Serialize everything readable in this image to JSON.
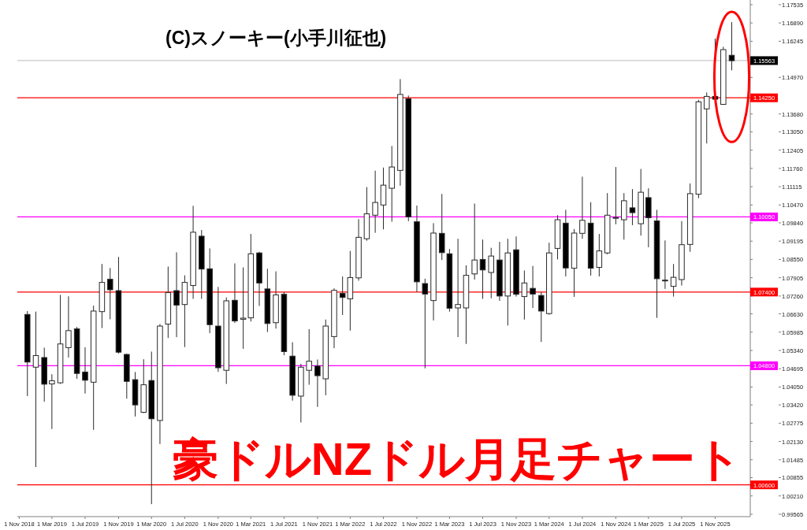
{
  "chart_data": {
    "type": "candlestick",
    "title": "豪ドルNZドル月足チャート",
    "annotations": [
      "(C)スノーキー(小手川征也)"
    ],
    "x": [
      "2018-12",
      "2019-01",
      "2019-02",
      "2019-03",
      "2019-04",
      "2019-05",
      "2019-06",
      "2019-07",
      "2019-08",
      "2019-09",
      "2019-10",
      "2019-11",
      "2019-12",
      "2020-01",
      "2020-02",
      "2020-03",
      "2020-04",
      "2020-05",
      "2020-06",
      "2020-07",
      "2020-08",
      "2020-09",
      "2020-10",
      "2020-11",
      "2020-12",
      "2021-01",
      "2021-02",
      "2021-03",
      "2021-04",
      "2021-05",
      "2021-06",
      "2021-07",
      "2021-08",
      "2021-09",
      "2021-10",
      "2021-11",
      "2021-12",
      "2022-01",
      "2022-02",
      "2022-03",
      "2022-04",
      "2022-05",
      "2022-06",
      "2022-07",
      "2022-08",
      "2022-09",
      "2022-10",
      "2022-11",
      "2022-12",
      "2023-01",
      "2023-02",
      "2023-03",
      "2023-04",
      "2023-05",
      "2023-06",
      "2023-07",
      "2023-08",
      "2023-09",
      "2023-10",
      "2023-11",
      "2023-12",
      "2024-01",
      "2024-02",
      "2024-03",
      "2024-04",
      "2024-05",
      "2024-06",
      "2024-07",
      "2024-08",
      "2024-09",
      "2024-10",
      "2024-11",
      "2024-12",
      "2025-01",
      "2025-02",
      "2025-03",
      "2025-04",
      "2025-05",
      "2025-06",
      "2025-07",
      "2025-08",
      "2025-09",
      "2025-10",
      "2025-11",
      "2025-12",
      "2026-01"
    ],
    "ohlc": [
      [
        1.0661,
        1.0673,
        1.0373,
        1.0493
      ],
      [
        1.0475,
        1.0671,
        1.0123,
        1.0516
      ],
      [
        1.0509,
        1.0544,
        1.0353,
        1.0415
      ],
      [
        1.0416,
        1.045,
        1.0257,
        1.0427
      ],
      [
        1.042,
        1.073,
        1.0416,
        1.0557
      ],
      [
        1.0544,
        1.0725,
        1.0509,
        1.0604
      ],
      [
        1.061,
        1.0617,
        1.0434,
        1.0453
      ],
      [
        1.0458,
        1.0545,
        1.0382,
        1.0429
      ],
      [
        1.0422,
        1.0692,
        1.0254,
        1.0673
      ],
      [
        1.0671,
        1.0839,
        1.0613,
        1.0774
      ],
      [
        1.0785,
        1.0825,
        1.0644,
        1.0748
      ],
      [
        1.0745,
        1.0864,
        1.0523,
        1.0528
      ],
      [
        1.052,
        1.0523,
        1.0364,
        1.0425
      ],
      [
        1.0431,
        1.0458,
        1.0301,
        1.0342
      ],
      [
        1.0316,
        1.0503,
        1.0313,
        1.0413
      ],
      [
        1.0428,
        1.053,
        0.9992,
        1.0293
      ],
      [
        1.0287,
        1.0627,
        1.0204,
        1.062
      ],
      [
        1.0627,
        1.083,
        1.0578,
        1.0738
      ],
      [
        1.0745,
        1.088,
        1.0581,
        1.0694
      ],
      [
        1.0696,
        1.0799,
        1.0546,
        1.0774
      ],
      [
        1.0763,
        1.1044,
        1.0716,
        1.0951
      ],
      [
        1.0937,
        1.0959,
        1.0716,
        1.0821
      ],
      [
        1.0822,
        1.0894,
        1.0595,
        1.0625
      ],
      [
        1.062,
        1.0758,
        1.0459,
        1.0473
      ],
      [
        1.0464,
        1.0721,
        1.0416,
        1.0709
      ],
      [
        1.0711,
        1.0841,
        1.0631,
        1.0638
      ],
      [
        1.0644,
        1.0827,
        1.054,
        1.0648
      ],
      [
        1.0649,
        1.0945,
        1.0636,
        1.0875
      ],
      [
        1.0878,
        1.0882,
        1.0691,
        1.0772
      ],
      [
        1.0751,
        1.0822,
        1.0599,
        1.0629
      ],
      [
        1.0632,
        1.0813,
        1.0611,
        1.073
      ],
      [
        1.0732,
        1.074,
        1.0517,
        1.053
      ],
      [
        1.0514,
        1.0563,
        1.0357,
        1.0376
      ],
      [
        1.0373,
        1.0487,
        1.028,
        1.0475
      ],
      [
        1.0464,
        1.0609,
        1.0413,
        1.0496
      ],
      [
        1.0479,
        1.0502,
        1.0335,
        1.0445
      ],
      [
        1.0434,
        1.0643,
        1.0376,
        1.062
      ],
      [
        1.0583,
        1.0753,
        1.0542,
        1.0746
      ],
      [
        1.0735,
        1.0795,
        1.0659,
        1.0721
      ],
      [
        1.0716,
        1.0885,
        1.0604,
        1.0791
      ],
      [
        1.079,
        1.0997,
        1.078,
        1.0933
      ],
      [
        1.0928,
        1.111,
        1.0921,
        1.1016
      ],
      [
        1.1011,
        1.1168,
        1.0949,
        1.1056
      ],
      [
        1.1047,
        1.1179,
        1.0961,
        1.1117
      ],
      [
        1.1106,
        1.1255,
        1.0988,
        1.1181
      ],
      [
        1.1169,
        1.1491,
        1.1115,
        1.1437
      ],
      [
        1.1422,
        1.1433,
        1.099,
        1.1005
      ],
      [
        1.0988,
        1.1045,
        1.074,
        1.0776
      ],
      [
        1.077,
        1.0787,
        1.0471,
        1.0733
      ],
      [
        1.071,
        1.0983,
        1.064,
        1.0948
      ],
      [
        1.0947,
        1.1086,
        1.0853,
        1.0879
      ],
      [
        1.0875,
        1.0892,
        1.0671,
        1.0683
      ],
      [
        1.0684,
        1.0928,
        1.0581,
        1.0696
      ],
      [
        1.0684,
        1.0834,
        1.0557,
        1.0799
      ],
      [
        1.0804,
        1.1052,
        1.0784,
        1.0853
      ],
      [
        1.0855,
        1.0925,
        1.0716,
        1.0818
      ],
      [
        1.0809,
        1.0896,
        1.0718,
        1.0867
      ],
      [
        1.0853,
        1.0917,
        1.0709,
        1.0726
      ],
      [
        1.0726,
        1.0928,
        1.0622,
        1.0878
      ],
      [
        1.0889,
        1.0936,
        1.0724,
        1.0732
      ],
      [
        1.0724,
        1.0816,
        1.0643,
        1.0772
      ],
      [
        1.0753,
        1.0832,
        1.0684,
        1.0733
      ],
      [
        1.0728,
        1.074,
        1.0564,
        1.0673
      ],
      [
        1.0664,
        1.0914,
        1.066,
        1.0878
      ],
      [
        1.0894,
        1.1011,
        1.0855,
        1.0995
      ],
      [
        1.0983,
        1.103,
        1.0795,
        1.0825
      ],
      [
        1.0824,
        1.0962,
        1.0723,
        1.0948
      ],
      [
        1.0947,
        1.1147,
        1.0928,
        1.0993
      ],
      [
        1.0983,
        1.1057,
        1.0798,
        1.0824
      ],
      [
        1.0827,
        1.0945,
        1.0795,
        1.0885
      ],
      [
        1.0878,
        1.1089,
        1.0873,
        1.1011
      ],
      [
        1.1,
        1.1181,
        1.0979,
        1.1003
      ],
      [
        1.0995,
        1.1089,
        1.0925,
        1.1062
      ],
      [
        1.1037,
        1.1103,
        1.0976,
        1.102
      ],
      [
        1.0981,
        1.1174,
        1.0939,
        1.1092
      ],
      [
        1.1073,
        1.1106,
        1.0898,
        1.1002
      ],
      [
        1.0991,
        1.103,
        1.0649,
        1.0787
      ],
      [
        1.0782,
        1.0922,
        1.0751,
        1.078
      ],
      [
        1.076,
        1.0839,
        1.0724,
        1.0792
      ],
      [
        1.0784,
        1.099,
        1.0763,
        1.0907
      ],
      [
        1.0908,
        1.1123,
        1.0882,
        1.1087
      ],
      [
        1.1085,
        1.1418,
        1.1071,
        1.1411
      ],
      [
        1.1386,
        1.1444,
        1.1264,
        1.143
      ],
      [
        1.143,
        1.1634,
        1.1415,
        1.142
      ],
      [
        1.1402,
        1.1605,
        1.14,
        1.1595
      ],
      [
        1.1575,
        1.1692,
        1.1522,
        1.1556
      ]
    ],
    "xlim": [
      "2018-10-25",
      "2026-03-10"
    ],
    "xticks": [
      {
        "value": "2018-11",
        "label": "1 Nov 2018"
      },
      {
        "value": "2019-03",
        "label": "1 Mar 2019"
      },
      {
        "value": "2019-07",
        "label": "1 Jul 2019"
      },
      {
        "value": "2019-11",
        "label": "1 Nov 2019"
      },
      {
        "value": "2020-03",
        "label": "1 Mar 2020"
      },
      {
        "value": "2020-07",
        "label": "1 Jul 2020"
      },
      {
        "value": "2020-11",
        "label": "1 Nov 2020"
      },
      {
        "value": "2021-03",
        "label": "1 Mar 2021"
      },
      {
        "value": "2021-07",
        "label": "1 Jul 2021"
      },
      {
        "value": "2021-11",
        "label": "1 Nov 2021"
      },
      {
        "value": "2022-03",
        "label": "1 Mar 2022"
      },
      {
        "value": "2022-07",
        "label": "1 Jul 2022"
      },
      {
        "value": "2022-11",
        "label": "1 Nov 2022"
      },
      {
        "value": "2023-03",
        "label": "1 Mar 2023"
      },
      {
        "value": "2023-07",
        "label": "1 Jul 2023"
      },
      {
        "value": "2023-11",
        "label": "1 Nov 2023"
      },
      {
        "value": "2024-03",
        "label": "1 Mar 2024"
      },
      {
        "value": "2024-07",
        "label": "1 Jul 2024"
      },
      {
        "value": "2024-11",
        "label": "1 Nov 2024"
      },
      {
        "value": "2025-03",
        "label": "1 Mar 2025"
      },
      {
        "value": "2025-07",
        "label": "1 Jul 2025"
      },
      {
        "value": "2025-11",
        "label": "1 Nov 2025"
      }
    ],
    "ylim": [
      0.9948,
      1.177
    ],
    "yticks": [
      1.17535,
      {
        "value": 1.1689,
        "label": "1.16890"
      },
      1.16245,
      {
        "value": 1.1497,
        "label": "1.14970"
      },
      {
        "value": 1.1368,
        "label": "1.13680"
      },
      {
        "value": 1.1305,
        "label": "1.13050"
      },
      1.12405,
      {
        "value": 1.1176,
        "label": "1.11760"
      },
      1.11115,
      {
        "value": 1.1047,
        "label": "1.10470"
      },
      {
        "value": 1.0984,
        "label": "1.09840"
      },
      1.09195,
      {
        "value": 1.0855,
        "label": "1.08550"
      },
      1.07905,
      {
        "value": 1.0726,
        "label": "1.07260"
      },
      {
        "value": 1.0663,
        "label": "1.06630"
      },
      1.05985,
      {
        "value": 1.0534,
        "label": "1.05340"
      },
      1.04695,
      {
        "value": 1.0405,
        "label": "1.04050"
      },
      {
        "value": 1.0342,
        "label": "1.03420"
      },
      1.02775,
      {
        "value": 1.0213,
        "label": "1.02130"
      },
      1.01485,
      1.00855,
      {
        "value": 1.0021,
        "label": "1.00210"
      },
      0.99565
    ],
    "ref_lines": [
      {
        "axis": "y",
        "value": 1.15563,
        "label": "1.15563",
        "color": "#c8c8c8"
      },
      {
        "axis": "y",
        "value": 1.1425,
        "label": "1.14250",
        "color": "#ff0000"
      },
      {
        "axis": "y",
        "value": 1.1005,
        "label": "1.10050",
        "color": "#ff00ff"
      },
      {
        "axis": "y",
        "value": 1.074,
        "label": "1.07400",
        "color": "#ff0000"
      },
      {
        "axis": "y",
        "value": 1.048,
        "label": "1.04800",
        "color": "#ff00ff"
      },
      {
        "axis": "y",
        "value": 1.006,
        "label": "1.00600",
        "color": "#ff0000"
      }
    ]
  }
}
